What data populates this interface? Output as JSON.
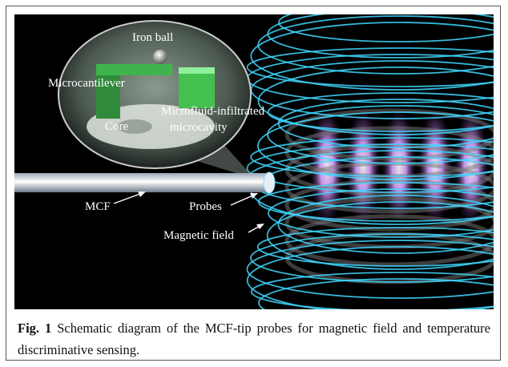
{
  "figure": {
    "labels": {
      "iron_ball": "Iron ball",
      "microcantilever": "Microcantilever",
      "core": "Core",
      "microcavity_line1": "Microfluid-infiltrated",
      "microcavity_line2": "microcavity",
      "mcf": "MCF",
      "probes": "Probes",
      "magnetic_field": "Magnetic field"
    },
    "caption": {
      "label": "Fig. 1",
      "text": "Schematic diagram of the MCF-tip probes for magnetic field and temperature discriminative sensing."
    }
  }
}
